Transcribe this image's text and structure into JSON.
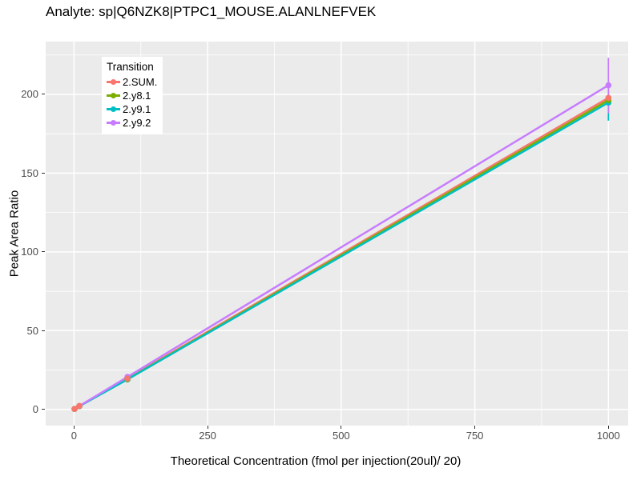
{
  "chart_data": {
    "type": "line",
    "title": "Analyte: sp|Q6NZK8|PTPC1_MOUSE.ALANLNEFVEK",
    "xlabel": "Theoretical Concentration (fmol per injection(20ul)/ 20)",
    "ylabel": "Peak Area Ratio",
    "legend_title": "Transition",
    "legend_position": "top-left-inset",
    "grid": true,
    "panel_bg": "#EBEBEB",
    "grid_color": "#FFFFFF",
    "xlim": [
      -53,
      1037
    ],
    "ylim": [
      -10.3,
      233.5
    ],
    "x_ticks": [
      0,
      250,
      500,
      750,
      1000
    ],
    "y_ticks": [
      0,
      50,
      100,
      150,
      200
    ],
    "x_minor_ticks": [
      125,
      375,
      625,
      875
    ],
    "y_minor_ticks": [
      25,
      75,
      125,
      175,
      225
    ],
    "series": [
      {
        "name": "2.SUM.",
        "color": "#F8766D",
        "x": [
          1,
          10,
          100,
          1000
        ],
        "y": [
          0.3,
          2.2,
          19.6,
          197.8
        ]
      },
      {
        "name": "2.y8.1",
        "color": "#7CAE00",
        "x": [
          1,
          10,
          100,
          1000
        ],
        "y": [
          0.3,
          2.1,
          19.2,
          196.3
        ]
      },
      {
        "name": "2.y9.1",
        "color": "#00BFC4",
        "x": [
          1,
          10,
          100,
          1000
        ],
        "y": [
          0.3,
          2.0,
          19.0,
          194.8
        ],
        "error_bars": [
          {
            "x": 1000,
            "lo": 183.3,
            "hi": 205.0
          }
        ]
      },
      {
        "name": "2.y9.2",
        "color": "#C77CFF",
        "x": [
          1,
          10,
          100,
          1000
        ],
        "y": [
          0.3,
          2.1,
          20.6,
          205.8
        ],
        "error_bars": [
          {
            "x": 1000,
            "lo": 188.0,
            "hi": 223.2
          }
        ]
      }
    ]
  }
}
